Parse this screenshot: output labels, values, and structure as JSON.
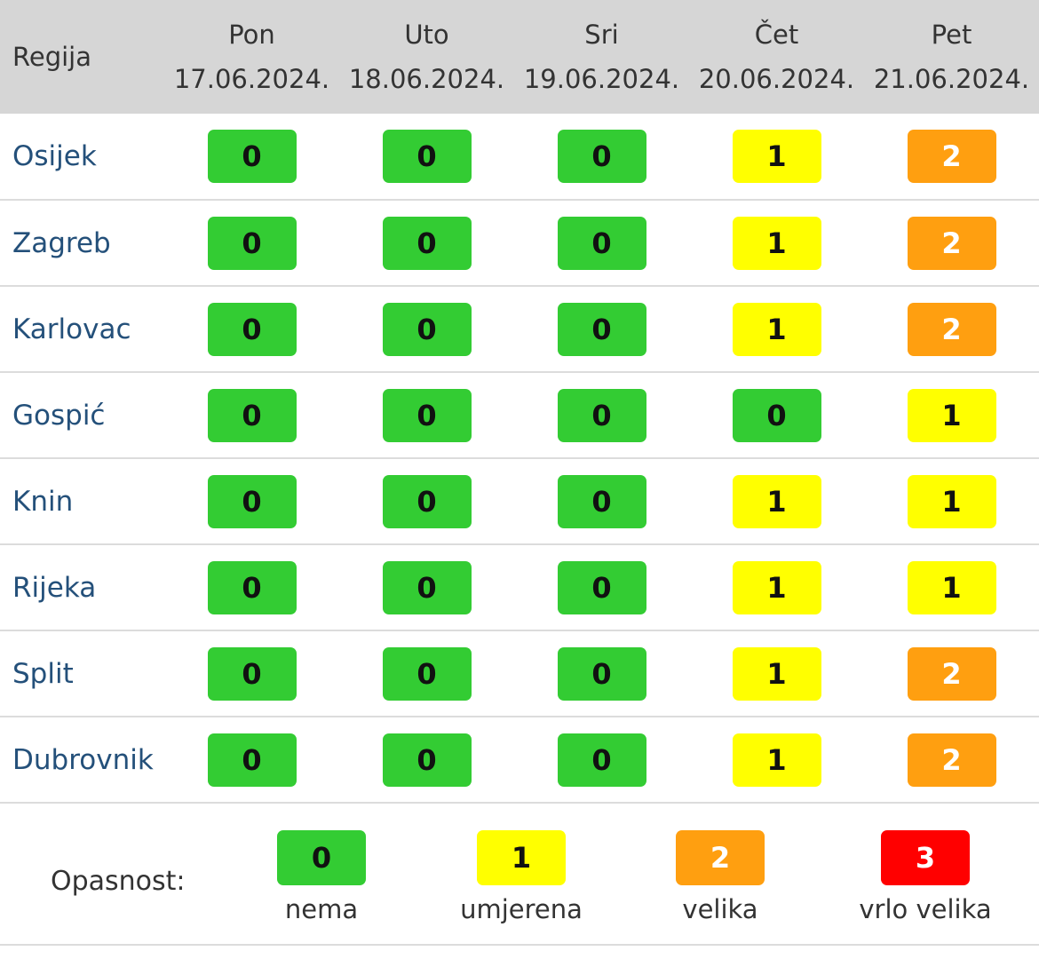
{
  "table": {
    "region_header": "Regija",
    "days": [
      {
        "day": "Pon",
        "date": "17.06.2024."
      },
      {
        "day": "Uto",
        "date": "18.06.2024."
      },
      {
        "day": "Sri",
        "date": "19.06.2024."
      },
      {
        "day": "Čet",
        "date": "20.06.2024."
      },
      {
        "day": "Pet",
        "date": "21.06.2024."
      }
    ],
    "rows": [
      {
        "region": "Osijek",
        "levels": [
          "0",
          "0",
          "0",
          "1",
          "2"
        ]
      },
      {
        "region": "Zagreb",
        "levels": [
          "0",
          "0",
          "0",
          "1",
          "2"
        ]
      },
      {
        "region": "Karlovac",
        "levels": [
          "0",
          "0",
          "0",
          "1",
          "2"
        ]
      },
      {
        "region": "Gospić",
        "levels": [
          "0",
          "0",
          "0",
          "0",
          "1"
        ]
      },
      {
        "region": "Knin",
        "levels": [
          "0",
          "0",
          "0",
          "1",
          "1"
        ]
      },
      {
        "region": "Rijeka",
        "levels": [
          "0",
          "0",
          "0",
          "1",
          "1"
        ]
      },
      {
        "region": "Split",
        "levels": [
          "0",
          "0",
          "0",
          "1",
          "2"
        ]
      },
      {
        "region": "Dubrovnik",
        "levels": [
          "0",
          "0",
          "0",
          "1",
          "2"
        ]
      }
    ]
  },
  "legend": {
    "label": "Opasnost:",
    "items": [
      {
        "level": "0",
        "desc": "nema"
      },
      {
        "level": "1",
        "desc": "umjerena"
      },
      {
        "level": "2",
        "desc": "velika"
      },
      {
        "level": "3",
        "desc": "vrlo velika"
      }
    ]
  },
  "colors": {
    "level_0": "#33cc33",
    "level_1": "#ffff00",
    "level_2": "#ff9f10",
    "level_3": "#ff0000",
    "header_bg": "#d6d6d6",
    "region_text": "#24507a"
  }
}
